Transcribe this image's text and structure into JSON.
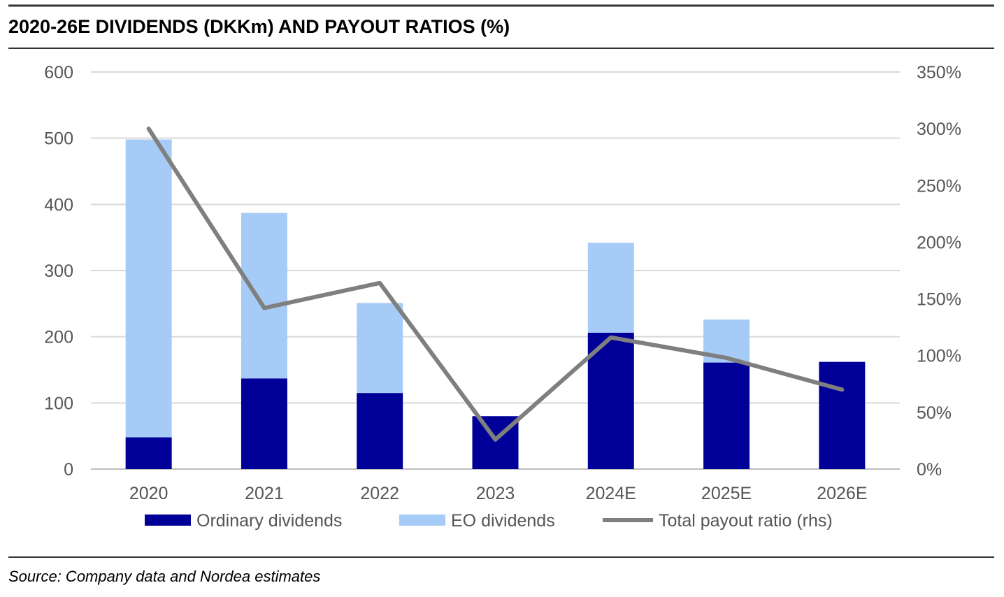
{
  "chart_data": {
    "type": "bar",
    "stacked": true,
    "title": "2020-26E DIVIDENDS (DKKm) AND PAYOUT RATIOS (%)",
    "source": "Source: Company data and Nordea estimates",
    "categories": [
      "2020",
      "2021",
      "2022",
      "2023",
      "2024E",
      "2025E",
      "2026E"
    ],
    "series": [
      {
        "name": "Ordinary dividends",
        "type": "bar",
        "axis": "left",
        "color": "#000099",
        "values": [
          48,
          137,
          115,
          80,
          206,
          161,
          162
        ]
      },
      {
        "name": "EO dividends",
        "type": "bar",
        "axis": "left",
        "color": "#A6CBF7",
        "values": [
          450,
          250,
          136,
          0,
          136,
          65,
          0
        ]
      },
      {
        "name": "Total payout ratio (rhs)",
        "type": "line",
        "axis": "right",
        "color": "#7F7F7F",
        "values": [
          300,
          142,
          164,
          26,
          116,
          98,
          70
        ]
      }
    ],
    "y_left": {
      "min": 0,
      "max": 600,
      "ticks": [
        "0",
        "100",
        "200",
        "300",
        "400",
        "500",
        "600"
      ]
    },
    "y_right": {
      "min": 0,
      "max": 350,
      "ticks": [
        "0%",
        "50%",
        "100%",
        "150%",
        "200%",
        "250%",
        "300%",
        "350%"
      ]
    },
    "grid": true,
    "legend_position": "bottom"
  }
}
